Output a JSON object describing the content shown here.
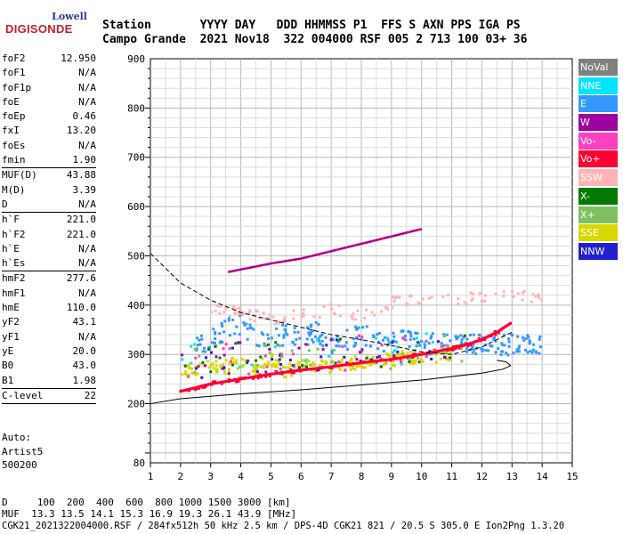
{
  "logo": {
    "top": "Lowell",
    "main": "DIGISONDE"
  },
  "header": {
    "line1": "Station       YYYY DAY   DDD HHMMSS P1  FFS S AXN PPS IGA PS",
    "line2": "Campo Grande  2021 Nov18  322 004000 RSF 005 2 713 100 03+ 36"
  },
  "params": [
    {
      "label": "foF2",
      "value": "12.950"
    },
    {
      "label": "foF1",
      "value": "N/A"
    },
    {
      "label": "foF1p",
      "value": "N/A"
    },
    {
      "label": "foE",
      "value": "N/A"
    },
    {
      "label": "foEp",
      "value": "0.46"
    },
    {
      "label": "fxI",
      "value": "13.20"
    },
    {
      "label": "foEs",
      "value": "N/A"
    },
    {
      "label": "fmin",
      "value": "1.90"
    },
    {
      "sep": true
    },
    {
      "label": "MUF(D)",
      "value": "43.88"
    },
    {
      "label": "M(D)",
      "value": "3.39"
    },
    {
      "label": "D",
      "value": "N/A"
    },
    {
      "sep": true
    },
    {
      "label": "h`F",
      "value": "221.0"
    },
    {
      "label": "h`F2",
      "value": "221.0"
    },
    {
      "label": "h`E",
      "value": "N/A"
    },
    {
      "label": "h`Es",
      "value": "N/A"
    },
    {
      "sep": true
    },
    {
      "label": "hmF2",
      "value": "277.6"
    },
    {
      "label": "hmF1",
      "value": "N/A"
    },
    {
      "label": "hmE",
      "value": "110.0"
    },
    {
      "label": "yF2",
      "value": "43.1"
    },
    {
      "label": "yF1",
      "value": "N/A"
    },
    {
      "label": "yE",
      "value": "20.0"
    },
    {
      "label": "B0",
      "value": "43.0"
    },
    {
      "label": "B1",
      "value": "1.98"
    },
    {
      "sep": true
    },
    {
      "label": "C-level",
      "value": "22"
    },
    {
      "sep": true
    }
  ],
  "auto": {
    "line1": "Auto:",
    "line2": "Artist5",
    "line3": "500200"
  },
  "legend": [
    {
      "label": "NoVal",
      "color": "#808080"
    },
    {
      "label": "NNE",
      "color": "#00e5ff"
    },
    {
      "label": "E",
      "color": "#3399ff"
    },
    {
      "label": "W",
      "color": "#a000a0"
    },
    {
      "label": "Vo-",
      "color": "#ff40c0"
    },
    {
      "label": "Vo+",
      "color": "#ff0033"
    },
    {
      "label": "SSW",
      "color": "#ffb4b4"
    },
    {
      "label": "X-",
      "color": "#007a00"
    },
    {
      "label": "X+",
      "color": "#80c060"
    },
    {
      "label": "SSE",
      "color": "#d8d800"
    },
    {
      "label": "NNW",
      "color": "#2020d0"
    }
  ],
  "footer": {
    "line1": "D     100  200  400  600  800 1000 1500 3000 [km]",
    "line2": "MUF  13.3 13.5 14.1 15.3 16.9 19.3 26.1 43.9 [MHz]",
    "line3": "CGK21_2021322004000.RSF / 284fx512h 50 kHz 2.5 km / DPS-4D CGK21 821 / 20.5 S 305.0 E Ion2Png 1.3.20"
  },
  "chart_data": {
    "type": "scatter",
    "title": "",
    "xlabel": "",
    "ylabel": "",
    "xlim": [
      1,
      15
    ],
    "ylim": [
      80,
      900
    ],
    "x_ticks": [
      1,
      2,
      3,
      4,
      5,
      6,
      7,
      8,
      9,
      10,
      11,
      12,
      13,
      14,
      15
    ],
    "y_ticks": [
      80,
      200,
      300,
      400,
      500,
      600,
      700,
      800,
      900
    ],
    "grid": true,
    "legend_position": "right",
    "series": [
      {
        "name": "Vo+",
        "color": "#ff0033",
        "x": [
          2.0,
          3.0,
          4.0,
          5.0,
          6.0,
          7.0,
          8.0,
          9.0,
          10.0,
          11.0,
          11.5,
          12.0,
          12.5,
          13.0
        ],
        "y": [
          225,
          240,
          250,
          260,
          268,
          275,
          283,
          290,
          300,
          312,
          320,
          330,
          345,
          365
        ]
      },
      {
        "name": "E",
        "color": "#3399ff",
        "x": [
          2.5,
          3.0,
          3.5,
          4.0,
          4.5,
          5.0,
          5.5,
          6.0,
          6.5,
          7.0,
          7.5,
          8.0,
          8.5,
          9.0,
          9.5,
          10.0,
          10.5,
          11.0,
          12.0,
          13.0,
          14.0
        ],
        "y": [
          320,
          330,
          350,
          360,
          325,
          335,
          340,
          330,
          345,
          320,
          330,
          340,
          325,
          330,
          340,
          315,
          325,
          320,
          322,
          320,
          320
        ]
      },
      {
        "name": "SSW",
        "color": "#ffb4b4",
        "x": [
          3.0,
          4.0,
          5.0,
          6.0,
          7.0,
          8.0,
          9.0,
          10.0,
          11.0,
          12.0,
          13.0,
          14.0
        ],
        "y": [
          395,
          385,
          370,
          380,
          390,
          380,
          405,
          410,
          412,
          415,
          418,
          415
        ]
      },
      {
        "name": "SSE",
        "color": "#d8d800",
        "x": [
          2.0,
          2.5,
          3.0,
          3.5,
          4.0,
          4.5,
          5.0,
          5.5,
          6.0,
          7.0,
          8.0,
          9.0,
          10.0,
          11.0
        ],
        "y": [
          260,
          270,
          280,
          275,
          285,
          270,
          290,
          265,
          280,
          275,
          285,
          290,
          295,
          300
        ]
      }
    ],
    "trace_second_hop": {
      "x": [
        3.6,
        5.0,
        6.0,
        7.0,
        8.0,
        9.0,
        10.0
      ],
      "y": [
        468,
        485,
        495,
        510,
        525,
        540,
        555
      ]
    },
    "profile_curve": {
      "x": [
        1.0,
        2.0,
        4.0,
        6.0,
        8.0,
        10.0,
        11.0,
        12.0,
        12.7,
        12.95,
        12.8,
        12.5
      ],
      "y": [
        200,
        210,
        220,
        228,
        238,
        248,
        255,
        262,
        270,
        277,
        285,
        288
      ]
    },
    "dashed_curve": {
      "x": [
        1.0,
        2.0,
        3.0,
        4.0,
        5.0,
        6.0,
        7.0,
        8.0,
        9.0,
        10.0,
        11.0,
        12.0,
        13.0
      ],
      "y": [
        505,
        445,
        410,
        385,
        370,
        355,
        340,
        330,
        318,
        305,
        300,
        315,
        345
      ]
    }
  }
}
